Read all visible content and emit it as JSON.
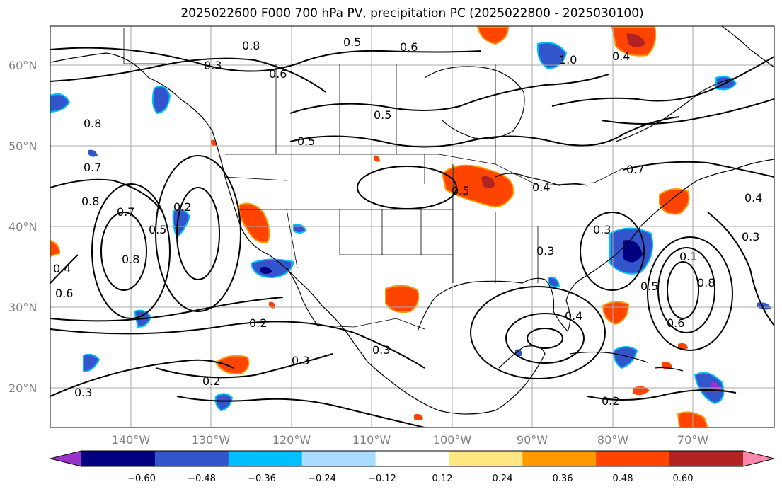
{
  "title": "2025022600 F000 700 hPa PV, precipitation PC (2025022800 - 2025030100)",
  "lat_labels": [
    "60°N",
    "50°N",
    "40°N",
    "30°N",
    "20°N"
  ],
  "lon_labels": [
    "140°W",
    "130°W",
    "120°W",
    "110°W",
    "100°W",
    "90°W",
    "80°W",
    "70°W"
  ],
  "contour_labels": [
    "0.3",
    "0.8",
    "0.5",
    "0.6",
    "1.0",
    "0.4",
    "0.6",
    "0.8",
    "0.5",
    "0.5",
    "0.7",
    "0.8",
    "0.7",
    "0.8",
    "0.2",
    "0.5",
    "0.5",
    "0.4",
    "0.3",
    "0.3",
    "0.4",
    "0.2",
    "0.3",
    "0.3",
    "0.2",
    "0.3",
    "0.2",
    "0.5",
    "0.8",
    "0.6",
    "0.1",
    "0.7",
    "0.3",
    "0.4",
    "0.6",
    "0.4"
  ],
  "colorbar": {
    "ticks": [
      "−0.60",
      "−0.48",
      "−0.36",
      "−0.24",
      "−0.12",
      "0.12",
      "0.24",
      "0.36",
      "0.48",
      "0.60"
    ],
    "colors": [
      "#9933cc",
      "#000080",
      "#3355cc",
      "#00bfff",
      "#aadcff",
      "#ffffff",
      "#ffe680",
      "#ff9900",
      "#ff4400",
      "#b22222",
      "#ff88aa"
    ]
  }
}
